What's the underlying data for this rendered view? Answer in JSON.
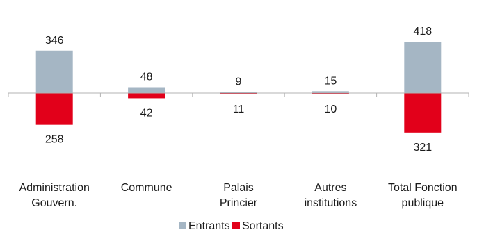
{
  "chart_data": {
    "type": "bar",
    "categories": [
      [
        "Administration",
        "Gouvern."
      ],
      [
        "Commune"
      ],
      [
        "Palais",
        "Princier"
      ],
      [
        "Autres",
        "institutions"
      ],
      [
        "Total Fonction",
        "publique"
      ]
    ],
    "series": [
      {
        "name": "Entrants",
        "values": [
          346,
          48,
          9,
          15,
          418
        ],
        "color": "#a5b6c4",
        "direction": "up"
      },
      {
        "name": "Sortants",
        "values": [
          258,
          42,
          11,
          10,
          321
        ],
        "color": "#e2001a",
        "direction": "down"
      }
    ],
    "ylim": [
      -321,
      418
    ],
    "grid": false,
    "legend_position": "bottom",
    "title": "",
    "xlabel": "",
    "ylabel": ""
  }
}
